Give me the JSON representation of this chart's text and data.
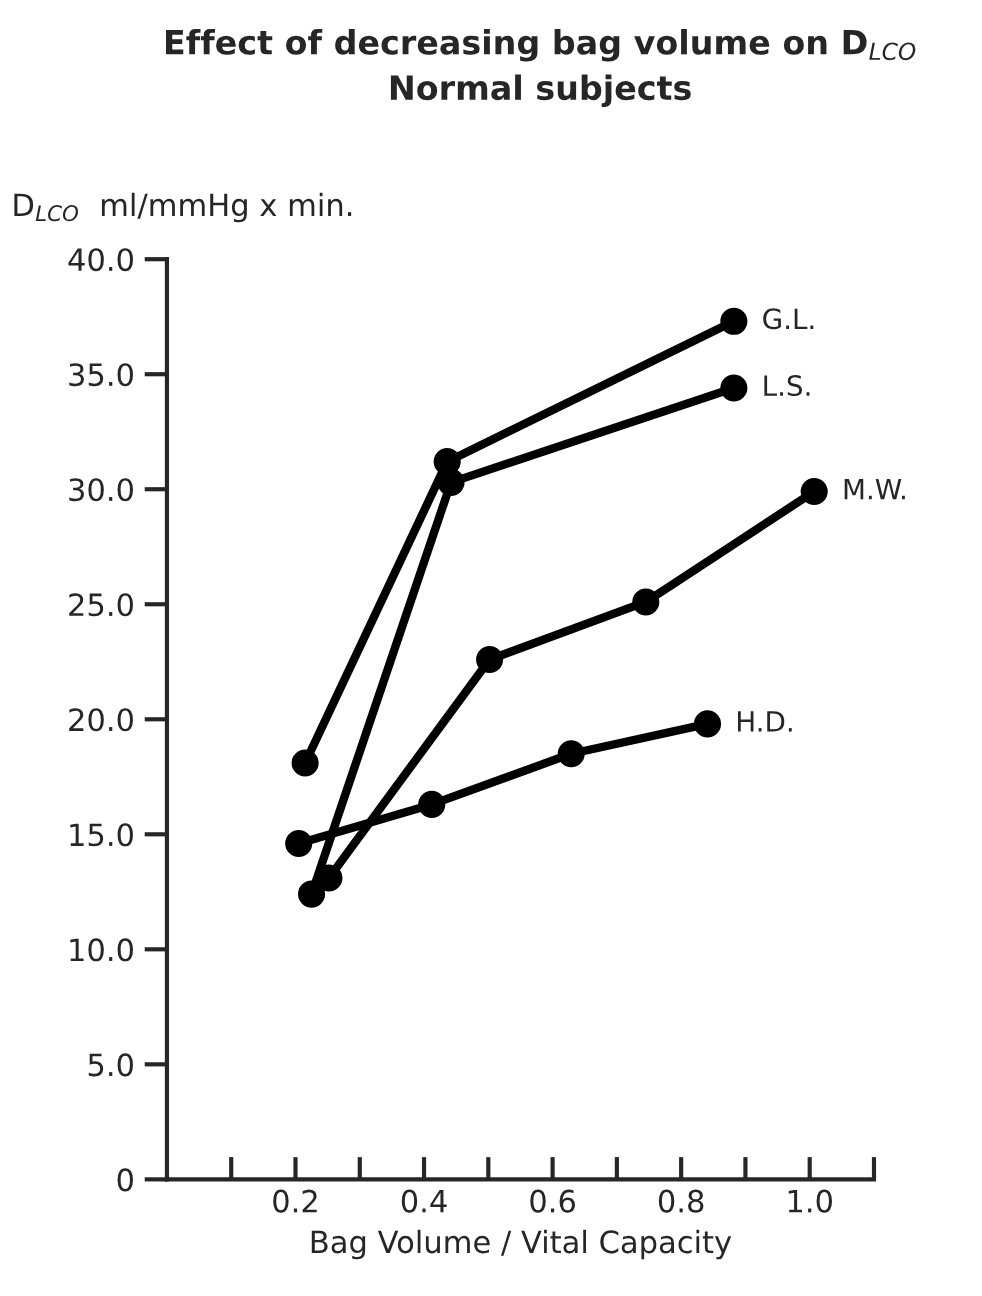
{
  "chart_data": {
    "type": "line",
    "title": "Effect of decreasing bag volume on D$_{LCO}$",
    "subtitle": "Normal subjects",
    "xlabel": "Bag Volume / Vital Capacity",
    "ylabel": "D$_{LCO}$  ml/mmHg x min.",
    "series": [
      {
        "name": "G.L.",
        "color": "#000000",
        "x": [
          0.215,
          0.436,
          0.882
        ],
        "values": [
          18.1,
          31.2,
          37.3
        ]
      },
      {
        "name": "L.S.",
        "color": "#000000",
        "x": [
          0.225,
          0.442,
          0.882
        ],
        "values": [
          12.4,
          30.3,
          34.4
        ]
      },
      {
        "name": "M.W.",
        "color": "#000000",
        "x": [
          0.252,
          0.502,
          0.745,
          1.007
        ],
        "values": [
          13.1,
          22.6,
          25.1,
          29.9
        ]
      },
      {
        "name": "H.D.",
        "color": "#000000",
        "x": [
          0.205,
          0.412,
          0.629,
          0.841
        ],
        "values": [
          14.6,
          16.3,
          18.5,
          19.8
        ]
      }
    ],
    "xlim": [
      0,
      1.1
    ],
    "xticks": [
      {
        "value": 0.1,
        "label": null
      },
      {
        "value": 0.2,
        "label": "0.2"
      },
      {
        "value": 0.3,
        "label": null
      },
      {
        "value": 0.4,
        "label": "0.4"
      },
      {
        "value": 0.5,
        "label": null
      },
      {
        "value": 0.6,
        "label": "0.6"
      },
      {
        "value": 0.7,
        "label": null
      },
      {
        "value": 0.8,
        "label": "0.8"
      },
      {
        "value": 0.9,
        "label": null
      },
      {
        "value": 1.0,
        "label": "1.0"
      },
      {
        "value": 1.1,
        "label": null
      }
    ],
    "ylim": [
      0,
      40
    ],
    "yticks": [
      {
        "value": 0,
        "label": "0"
      },
      {
        "value": 5,
        "label": "5.0"
      },
      {
        "value": 10,
        "label": "10.0"
      },
      {
        "value": 15,
        "label": "15.0"
      },
      {
        "value": 20,
        "label": "20.0"
      },
      {
        "value": 25,
        "label": "25.0"
      },
      {
        "value": 30,
        "label": "30.0"
      },
      {
        "value": 35,
        "label": "35.0"
      },
      {
        "value": 40,
        "label": "40.0"
      }
    ],
    "grid": false,
    "legend": false,
    "marker": "circle",
    "line_style": "solid"
  }
}
